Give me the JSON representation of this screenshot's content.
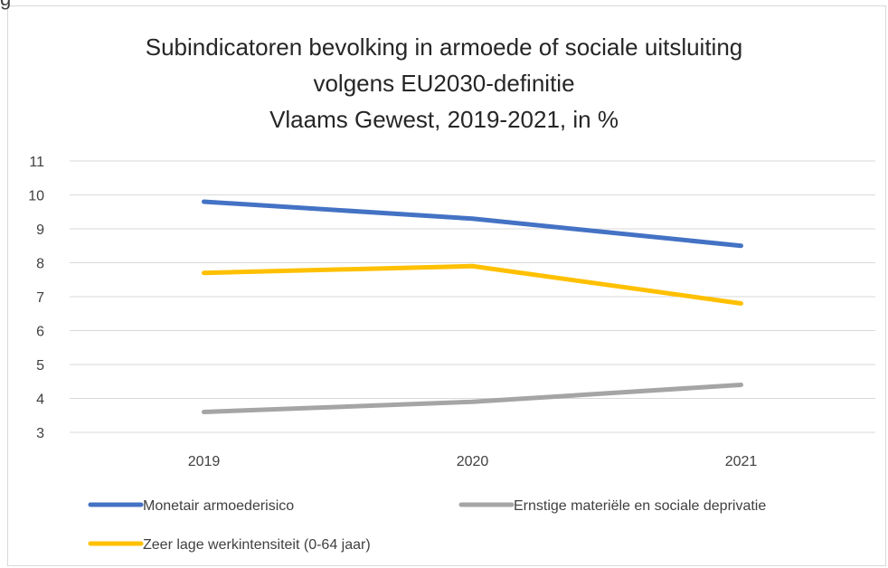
{
  "clipped_text": "g",
  "chart_data": {
    "type": "line",
    "title_lines": [
      "Subindicatoren bevolking in armoede of sociale uitsluiting",
      "volgens EU2030-definitie",
      "Vlaams Gewest, 2019-2021, in %"
    ],
    "categories": [
      "2019",
      "2020",
      "2021"
    ],
    "ylim": [
      3,
      11
    ],
    "yticks": [
      "3",
      "4",
      "5",
      "6",
      "7",
      "8",
      "9",
      "10",
      "11"
    ],
    "grid": true,
    "legend_position": "bottom",
    "series": [
      {
        "name": "Monetair armoederisico",
        "values": [
          9.8,
          9.3,
          8.5
        ],
        "color": "#4472c4"
      },
      {
        "name": "Ernstige materiële en sociale deprivatie",
        "values": [
          3.6,
          3.9,
          4.4
        ],
        "color": "#a5a5a5"
      },
      {
        "name": "Zeer lage werkintensiteit (0-64 jaar)",
        "values": [
          7.7,
          7.9,
          6.8
        ],
        "color": "#ffc000"
      }
    ]
  }
}
